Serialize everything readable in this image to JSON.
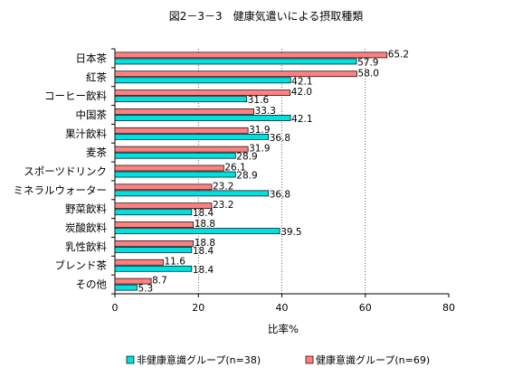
{
  "chart_data": {
    "type": "bar",
    "orientation": "horizontal",
    "title": "図2－3－3　健康気遣いによる摂取種類",
    "xlabel": "比率%",
    "ylabel": "",
    "xlim": [
      0,
      80
    ],
    "xticks": [
      "0",
      "20",
      "40",
      "60",
      "80"
    ],
    "grid": true,
    "legend_position": "bottom",
    "categories": [
      "日本茶",
      "紅茶",
      "コーヒー飲料",
      "中国茶",
      "果汁飲料",
      "麦茶",
      "スポーツドリンク",
      "ミネラルウォーター",
      "野菜飲料",
      "炭酸飲料",
      "乳性飲料",
      "ブレンド茶",
      "その他"
    ],
    "series": [
      {
        "name": "健康意識グループ(n=69)",
        "color": "#ff8080",
        "values": [
          65.2,
          58.0,
          42.0,
          33.3,
          31.9,
          31.9,
          26.1,
          23.2,
          23.2,
          18.8,
          18.8,
          11.6,
          8.7
        ],
        "labels": [
          "65.2",
          "58.0",
          "42.0",
          "33.3",
          "31.9",
          "31.9",
          "26.1",
          "23.2",
          "23.2",
          "18.8",
          "18.8",
          "11.6",
          "8.7"
        ]
      },
      {
        "name": "非健康意識グループ(n=38)",
        "color": "#00e0e0",
        "values": [
          57.9,
          42.1,
          31.6,
          42.1,
          36.8,
          28.9,
          28.9,
          36.8,
          18.4,
          39.5,
          18.4,
          18.4,
          5.3
        ],
        "labels": [
          "57.9",
          "42.1",
          "31.6",
          "42.1",
          "36.8",
          "28.9",
          "28.9",
          "36.8",
          "18.4",
          "39.5",
          "18.4",
          "18.4",
          "5.3"
        ]
      }
    ],
    "legend_order": [
      "非健康意識グループ(n=38)",
      "健康意識グループ(n=69)"
    ]
  }
}
